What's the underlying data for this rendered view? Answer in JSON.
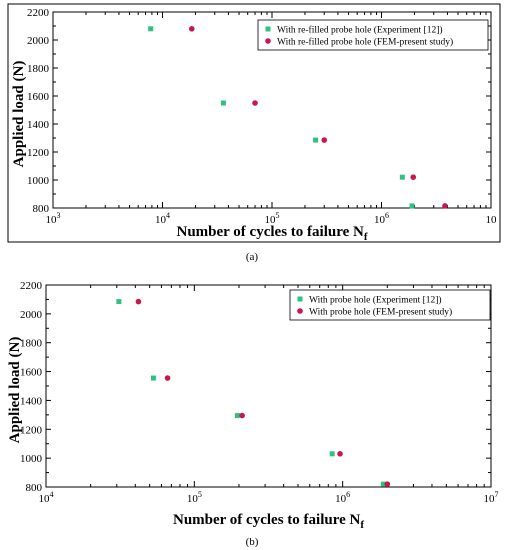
{
  "figure": {
    "captions": [
      "(a)",
      "(b)"
    ]
  },
  "chart_data": [
    {
      "type": "scatter",
      "title": "",
      "xlabel": "Number of cycles to failure N",
      "xlabel_subscript": "f",
      "ylabel": "Applied load (N)",
      "xscale": "log",
      "xlim": [
        1000,
        10000000
      ],
      "ylim": [
        800,
        2200
      ],
      "x_ticks": [
        {
          "base": "10",
          "exp": "3"
        },
        {
          "base": "10",
          "exp": "4"
        },
        {
          "base": "10",
          "exp": "5"
        },
        {
          "base": "10",
          "exp": "6"
        },
        {
          "base": "10",
          "exp": ""
        }
      ],
      "y_ticks": [
        "800",
        "1000",
        "1200",
        "1400",
        "1600",
        "1800",
        "2000",
        "2200"
      ],
      "y_tick_values": [
        800,
        1000,
        1200,
        1400,
        1600,
        1800,
        2000,
        2200
      ],
      "legend_position": "top-right",
      "grid": false,
      "series": [
        {
          "name": "With re-filled probe hole (Experiment [12])",
          "marker": "square",
          "color": "#2ec27e",
          "points": [
            [
              7800,
              2080
            ],
            [
              36000,
              1550
            ],
            [
              250000,
              1285
            ],
            [
              1550000,
              1020
            ],
            [
              1900000,
              815
            ]
          ]
        },
        {
          "name": "With re-filled probe hole (FEM-present study)",
          "marker": "circle",
          "color": "#c8174a",
          "points": [
            [
              18500,
              2080
            ],
            [
              70000,
              1550
            ],
            [
              300000,
              1285
            ],
            [
              1950000,
              1020
            ],
            [
              3800000,
              815
            ]
          ]
        }
      ]
    },
    {
      "type": "scatter",
      "title": "",
      "xlabel": "Number of cycles to failure N",
      "xlabel_subscript": "f",
      "ylabel": "Applied load (N)",
      "xscale": "log",
      "xlim": [
        10000,
        10000000
      ],
      "ylim": [
        800,
        2200
      ],
      "x_ticks": [
        {
          "base": "10",
          "exp": "4"
        },
        {
          "base": "10",
          "exp": "5"
        },
        {
          "base": "10",
          "exp": "6"
        },
        {
          "base": "10",
          "exp": "7"
        }
      ],
      "y_ticks": [
        "800",
        "1000",
        "1200",
        "1400",
        "1600",
        "1800",
        "2000",
        "2200"
      ],
      "y_tick_values": [
        800,
        1000,
        1200,
        1400,
        1600,
        1800,
        2000,
        2200
      ],
      "legend_position": "top-right",
      "grid": false,
      "series": [
        {
          "name": "With  probe hole (Experiment [12])",
          "marker": "square",
          "color": "#2ec27e",
          "points": [
            [
              31000,
              2085
            ],
            [
              53000,
              1555
            ],
            [
              195000,
              1295
            ],
            [
              850000,
              1030
            ],
            [
              1880000,
              820
            ]
          ]
        },
        {
          "name": "With  probe hole (FEM-present study)",
          "marker": "circle",
          "color": "#c8174a",
          "points": [
            [
              42000,
              2085
            ],
            [
              66000,
              1555
            ],
            [
              210000,
              1295
            ],
            [
              960000,
              1030
            ],
            [
              2000000,
              820
            ]
          ]
        }
      ]
    }
  ]
}
